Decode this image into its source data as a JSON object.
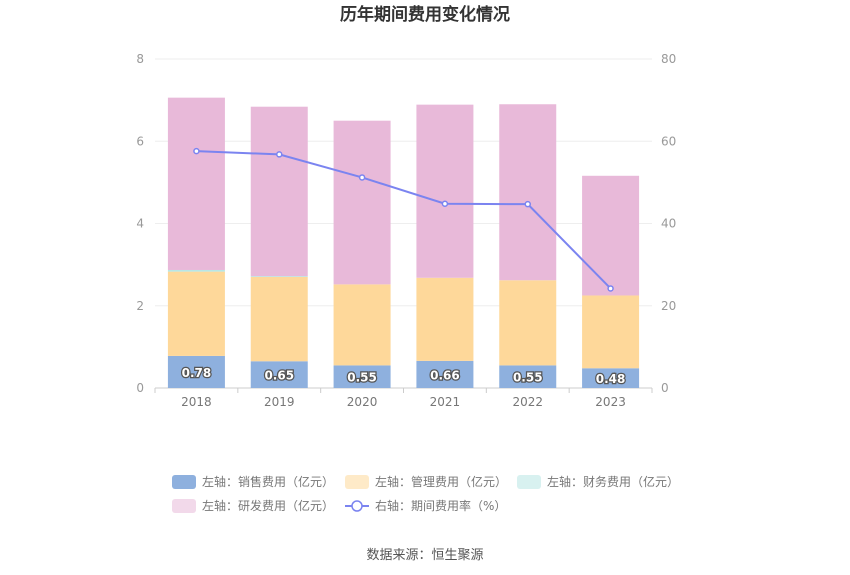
{
  "chart_data": {
    "type": "bar",
    "stacked": true,
    "title": "历年期间费用变化情况",
    "source": "数据来源：恒生聚源",
    "categories": [
      "2018",
      "2019",
      "2020",
      "2021",
      "2022",
      "2023"
    ],
    "y_left": {
      "range": [
        0,
        8
      ],
      "ticks": [
        "0",
        "2",
        "4",
        "6",
        "8"
      ]
    },
    "y_right": {
      "range": [
        0,
        80
      ],
      "ticks": [
        "0",
        "20",
        "40",
        "60",
        "80"
      ]
    },
    "grid": true,
    "legend_position": "bottom",
    "series": [
      {
        "name": "左轴：销售费用（亿元）",
        "axis": "left",
        "color": "#8eb0de",
        "values": [
          0.78,
          0.65,
          0.55,
          0.66,
          0.55,
          0.48
        ],
        "labels": [
          "0.78",
          "0.65",
          "0.55",
          "0.66",
          "0.55",
          "0.48"
        ]
      },
      {
        "name": "左轴：管理费用（亿元）",
        "axis": "left",
        "color": "#fed89a",
        "values": [
          2.05,
          2.05,
          1.97,
          2.02,
          2.07,
          1.77
        ]
      },
      {
        "name": "左轴：财务费用（亿元）",
        "axis": "left",
        "color": "#b8e6e4",
        "values": [
          0.04,
          0.02,
          0.0,
          0.0,
          0.0,
          0.0
        ]
      },
      {
        "name": "左轴：研发费用（亿元）",
        "axis": "left",
        "color": "#e8b9d9",
        "values": [
          4.19,
          4.12,
          3.98,
          4.21,
          4.28,
          2.91
        ]
      },
      {
        "name": "右轴：期间费用率（%）",
        "axis": "right",
        "type": "line",
        "color": "#7b84f0",
        "values": [
          57.6,
          56.8,
          51.2,
          44.8,
          44.7,
          24.2
        ]
      }
    ]
  }
}
